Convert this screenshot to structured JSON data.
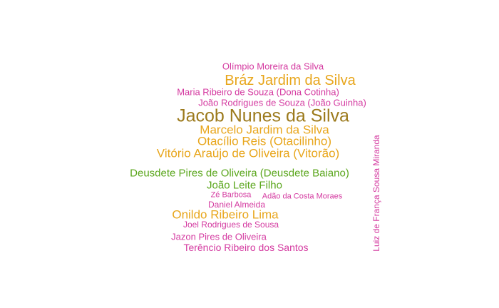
{
  "colors": {
    "magenta": "#d43aa0",
    "gold": "#e8a61c",
    "olive": "#9c7a1c",
    "green": "#5aa61c"
  },
  "words": [
    {
      "text": "Olímpio Moreira da Silva",
      "color": "#d43aa0"
    },
    {
      "text": "Bráz Jardim da Silva",
      "color": "#e8a61c"
    },
    {
      "text": "Maria Ribeiro de Souza (Dona Cotinha)",
      "color": "#d43aa0"
    },
    {
      "text": "João Rodrigues de Souza (João Guinha)",
      "color": "#d43aa0"
    },
    {
      "text": "Jacob Nunes da Silva",
      "color": "#9c7a1c"
    },
    {
      "text": "Marcelo Jardim da Silva",
      "color": "#e8a61c"
    },
    {
      "text": "Otacílio Reis (Otacilinho)",
      "color": "#e8a61c"
    },
    {
      "text": "Vitório Araújo de Oliveira (Vitorão)",
      "color": "#e8a61c"
    },
    {
      "text": "Deusdete Pires de Oliveira (Deusdete Baiano)",
      "color": "#5aa61c"
    },
    {
      "text": "João Leite Filho",
      "color": "#5aa61c"
    },
    {
      "text": "Zé Barbosa",
      "color": "#d43aa0"
    },
    {
      "text": "Adão da Costa Moraes",
      "color": "#d43aa0"
    },
    {
      "text": "Daniel Almeida",
      "color": "#d43aa0"
    },
    {
      "text": "Onildo Ribeiro Lima",
      "color": "#e8a61c"
    },
    {
      "text": "Joel Rodrigues de Sousa",
      "color": "#d43aa0"
    },
    {
      "text": "Jazon Pires de Oliveira",
      "color": "#d43aa0"
    },
    {
      "text": "Terêncio Ribeiro dos Santos",
      "color": "#d43aa0"
    },
    {
      "text": "Luiz de França Sousa Miranda",
      "color": "#d43aa0"
    }
  ]
}
